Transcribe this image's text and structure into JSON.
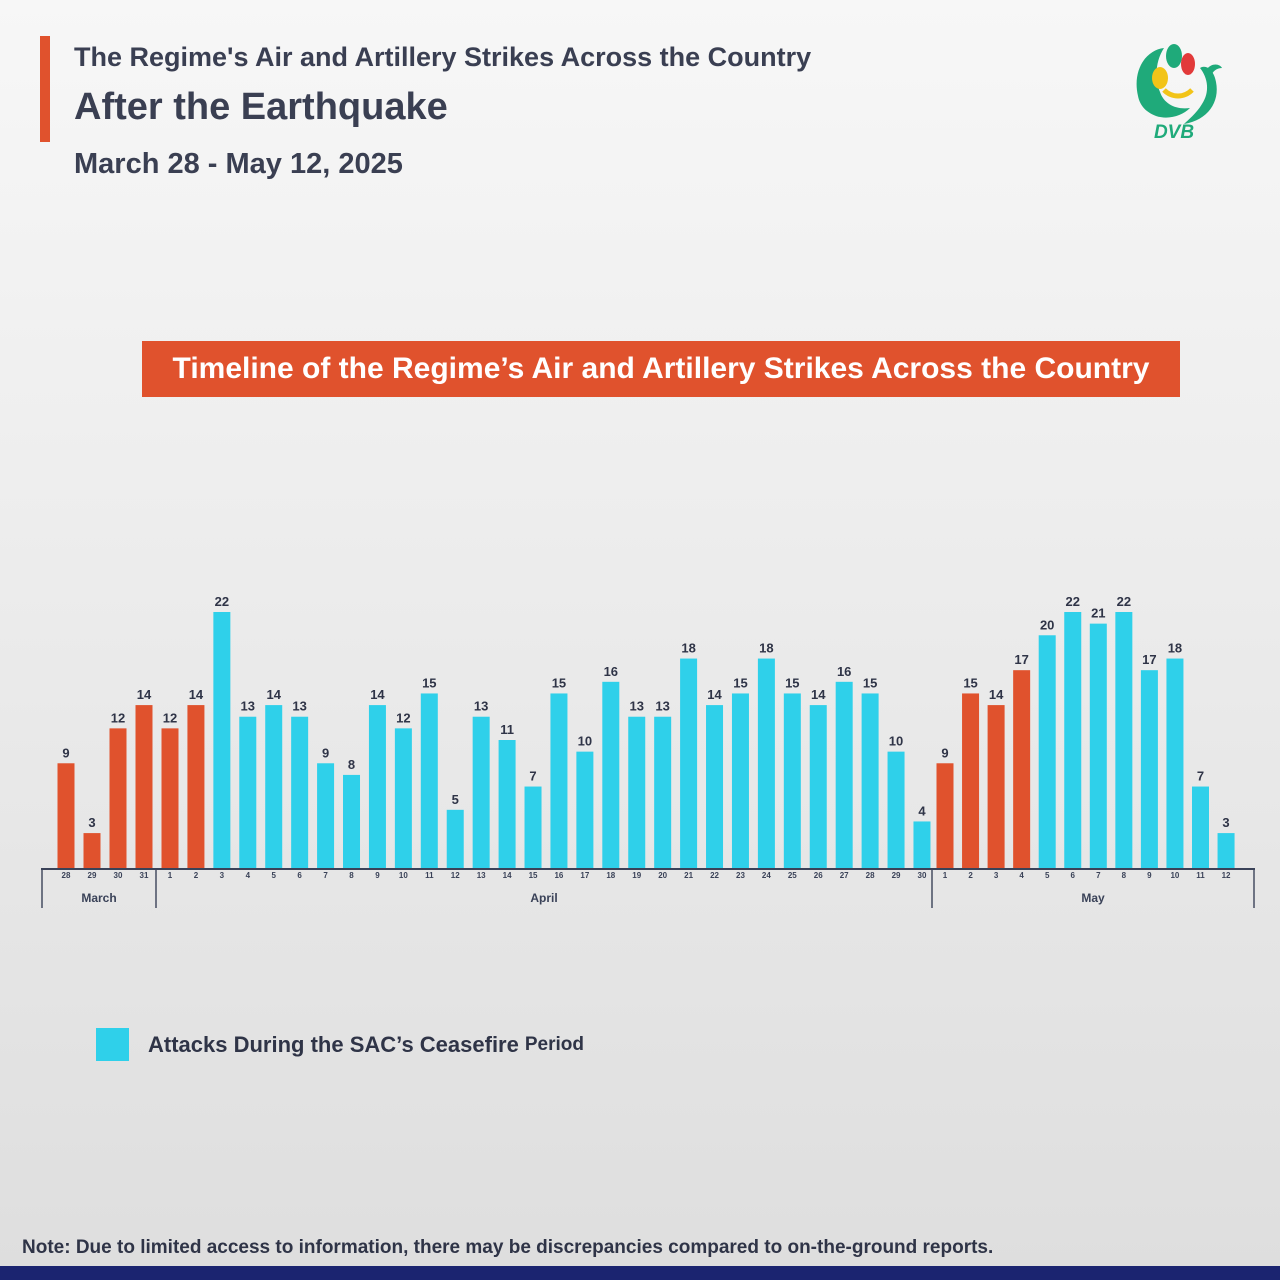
{
  "header": {
    "title_line1": "The Regime's Air and Artillery Strikes Across the Country",
    "title_line2": "After the Earthquake",
    "date_range": "March 28 - May 12, 2025"
  },
  "logo": {
    "text": "DVB"
  },
  "chart_data": {
    "type": "bar",
    "title": "Timeline of the Regime’s Air and Artillery Strikes Across the Country",
    "xlabel": "",
    "ylabel": "",
    "ylim": [
      0,
      22
    ],
    "months": [
      {
        "name": "March",
        "days": [
          28,
          29,
          30,
          31
        ]
      },
      {
        "name": "April",
        "days": [
          1,
          2,
          3,
          4,
          5,
          6,
          7,
          8,
          9,
          10,
          11,
          12,
          13,
          14,
          15,
          16,
          17,
          18,
          19,
          20,
          21,
          22,
          23,
          24,
          25,
          26,
          27,
          28,
          29,
          30
        ]
      },
      {
        "name": "May",
        "days": [
          1,
          2,
          3,
          4,
          5,
          6,
          7,
          8,
          9,
          10,
          11,
          12
        ]
      }
    ],
    "values": [
      9,
      3,
      12,
      14,
      12,
      14,
      22,
      13,
      14,
      13,
      9,
      8,
      14,
      12,
      15,
      5,
      13,
      11,
      7,
      15,
      10,
      16,
      13,
      13,
      18,
      14,
      15,
      18,
      15,
      14,
      16,
      15,
      10,
      4,
      9,
      15,
      14,
      17,
      20,
      22,
      21,
      22,
      17,
      18,
      7,
      3
    ],
    "ceasefire": [
      false,
      false,
      false,
      false,
      false,
      false,
      true,
      true,
      true,
      true,
      true,
      true,
      true,
      true,
      true,
      true,
      true,
      true,
      true,
      true,
      true,
      true,
      true,
      true,
      true,
      true,
      true,
      true,
      true,
      true,
      true,
      true,
      true,
      true,
      false,
      false,
      false,
      false,
      true,
      true,
      true,
      true,
      true,
      true,
      true,
      true
    ],
    "legend": [
      {
        "label": "Attacks During the SAC’s Ceasefire",
        "suffix": "Period"
      }
    ],
    "grid": false
  },
  "note": "Note: Due to limited access to information, there may be discrepancies compared to on-the-ground reports.",
  "colors": {
    "accent": "#e0522d",
    "ceasefire": "#2fd0ea",
    "text": "#2f3447",
    "axis": "#3a4258",
    "bottom_strip": "#1b2470"
  }
}
